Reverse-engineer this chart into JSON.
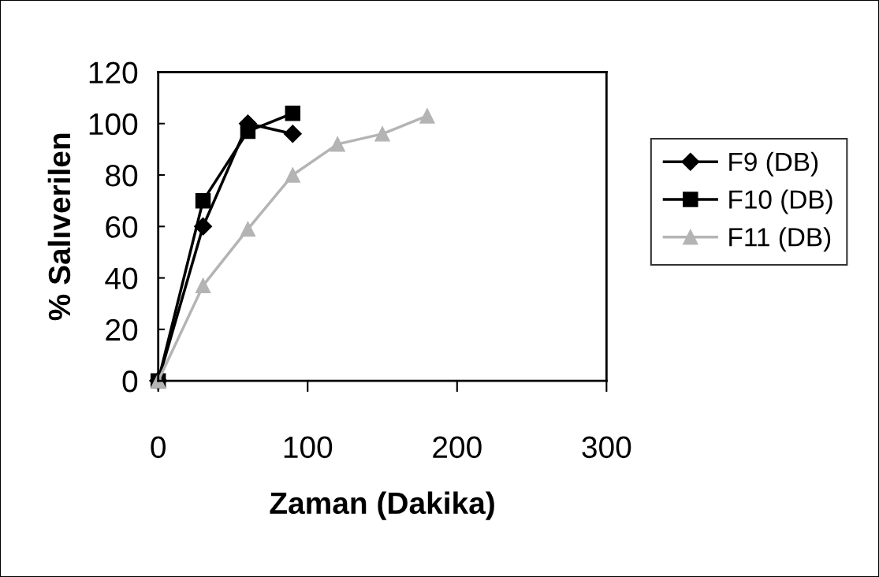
{
  "chart_data": {
    "type": "line",
    "xlabel": "Zaman (Dakika)",
    "ylabel": "% Salıverilen",
    "xlim": [
      0,
      300
    ],
    "xticks": [
      0,
      100,
      200,
      300
    ],
    "ylim": [
      0,
      120
    ],
    "yticks": [
      0,
      20,
      40,
      60,
      80,
      100,
      120
    ],
    "grid": false,
    "legend": "right",
    "series": [
      {
        "name": "F9 (DB)",
        "color": "#000000",
        "marker": "diamond",
        "x": [
          0,
          30,
          60,
          90
        ],
        "values": [
          0,
          60,
          100,
          96
        ]
      },
      {
        "name": "F10 (DB)",
        "color": "#000000",
        "marker": "square",
        "x": [
          0,
          30,
          60,
          90
        ],
        "values": [
          0,
          70,
          97,
          104
        ]
      },
      {
        "name": "F11 (DB)",
        "color": "#b4b4b4",
        "marker": "triangle",
        "x": [
          0,
          30,
          60,
          90,
          120,
          150,
          180
        ],
        "values": [
          0,
          37,
          59,
          80,
          92,
          96,
          103
        ]
      }
    ]
  }
}
